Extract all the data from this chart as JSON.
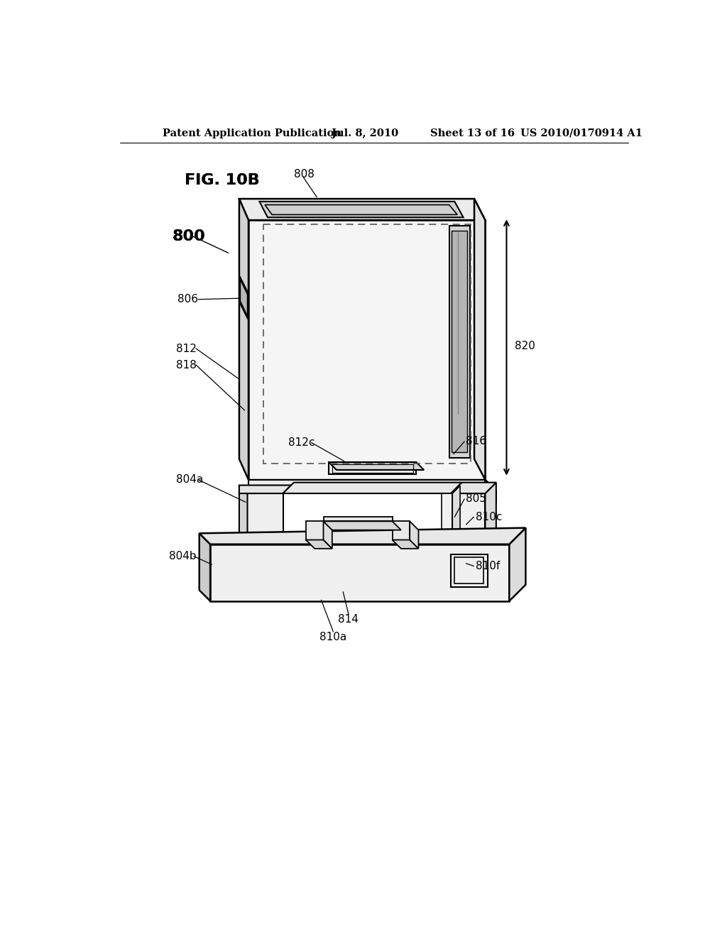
{
  "bg_color": "#ffffff",
  "line_color": "#000000",
  "header_left": "Patent Application Publication",
  "header_mid": "Jul. 8, 2010",
  "header_right1": "Sheet 13 of 16",
  "header_right2": "US 2010/0170914 A1",
  "fig_label": "FIG. 10B",
  "body_label": "800"
}
